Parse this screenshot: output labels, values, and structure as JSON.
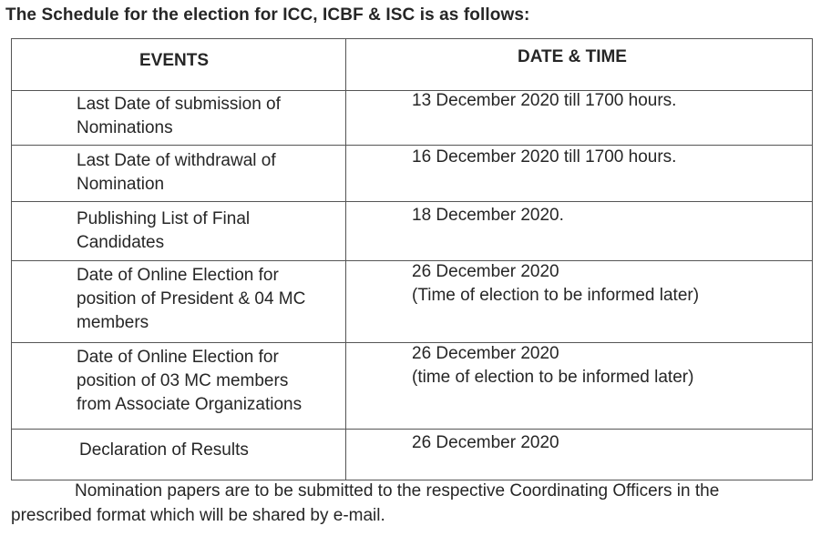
{
  "title": "The Schedule for the election for ICC, ICBF & ISC is as follows:",
  "table": {
    "headers": [
      "EVENTS",
      "DATE & TIME"
    ],
    "rows": [
      {
        "event": [
          "Last Date of submission of",
          "Nominations"
        ],
        "date": [
          "13 December 2020 till 1700 hours."
        ]
      },
      {
        "event": [
          "Last Date of withdrawal of",
          "Nomination"
        ],
        "date": [
          "16 December 2020 till 1700 hours."
        ]
      },
      {
        "event": [
          "Publishing List of Final",
          "Candidates"
        ],
        "date": [
          "18 December 2020."
        ]
      },
      {
        "event": [
          "Date of Online Election for",
          "position of President & 04 MC",
          "members"
        ],
        "date": [
          "26 December 2020",
          "(Time of election to be informed later)"
        ]
      },
      {
        "event": [
          "Date of Online Election for",
          "position of 03 MC members",
          "from Associate Organizations"
        ],
        "date": [
          "26 December 2020",
          "(time of election to be informed later)"
        ]
      },
      {
        "event": [
          "Declaration of Results"
        ],
        "date": [
          "26 December 2020"
        ]
      }
    ]
  },
  "footer": [
    "Nomination papers are to be submitted to the respective Coordinating Officers in the",
    "prescribed format which will be shared by e-mail."
  ]
}
